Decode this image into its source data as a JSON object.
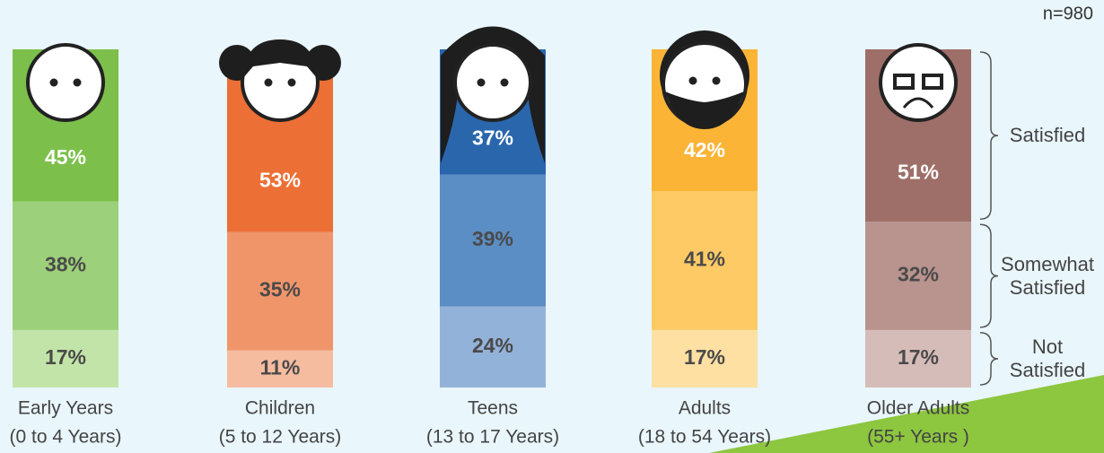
{
  "annotation": "n=980",
  "chart_data": {
    "type": "stacked-bar",
    "categories": [
      "Early Years",
      "Children",
      "Teens",
      "Adults",
      "Older Adults"
    ],
    "category_ranges": [
      "(0 to 4 Years)",
      "(5 to 12 Years)",
      "(13 to 17 Years)",
      "(18 to 54 Years)",
      "(55+ Years )"
    ],
    "ylim": [
      0,
      100
    ],
    "series": [
      {
        "name": "Satisfied",
        "colors": [
          "#7cc04b",
          "#ec6f35",
          "#2a66ac",
          "#fbb436",
          "#9e6f68"
        ],
        "values": [
          45,
          53,
          37,
          42,
          51
        ],
        "value_labels": [
          "45%",
          "53%",
          "37%",
          "42%",
          "51%"
        ]
      },
      {
        "name": "Somewhat Satisfied",
        "colors": [
          "#9dd07a",
          "#f0956a",
          "#5b8ec5",
          "#fdca66",
          "#b9938e"
        ],
        "values": [
          38,
          35,
          39,
          41,
          32
        ],
        "value_labels": [
          "38%",
          "35%",
          "39%",
          "41%",
          "32%"
        ]
      },
      {
        "name": "Not Satisfied",
        "colors": [
          "#c3e4a8",
          "#f6bca0",
          "#93b2d9",
          "#fde0a2",
          "#d6bcb8"
        ],
        "values": [
          17,
          11,
          24,
          17,
          17
        ],
        "value_labels": [
          "17%",
          "11%",
          "24%",
          "17%",
          "17%"
        ]
      }
    ]
  }
}
